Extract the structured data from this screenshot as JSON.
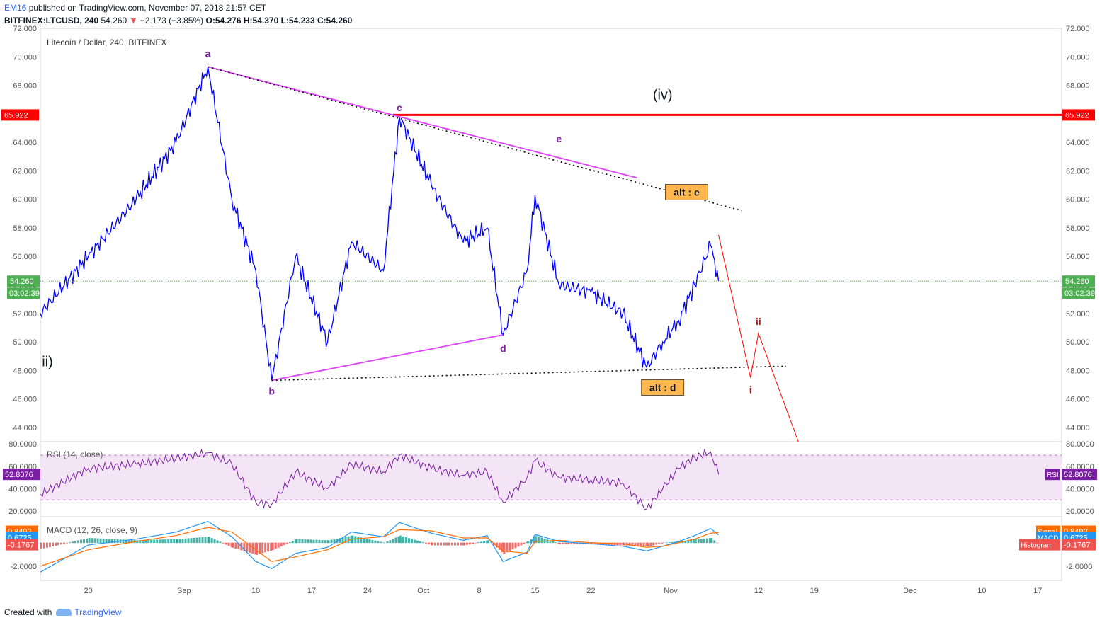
{
  "header": {
    "author": "EM16",
    "published_text": "published on TradingView.com, November 07, 2018 21:57 CET",
    "symbol": "BITFINEX:LTCUSD, 240",
    "last": "54.260",
    "change": "−2.173 (−3.85%)",
    "ohlc": {
      "o": "O:54.276",
      "h": "H:54.370",
      "l": "L:54.233",
      "c": "C:54.260"
    }
  },
  "footer": {
    "created_with": "Created with",
    "brand": "TradingView"
  },
  "colors": {
    "price": "#0000ff",
    "wave": "#e040fb",
    "resistance": "#ff0000",
    "projection": "#ff0000",
    "rsi": "#7b1fa2",
    "macd": "#2196f3",
    "signal": "#ff6d00",
    "hist_pos": "#26a69a",
    "hist_neg": "#ef5350",
    "last_price": "#4caf50"
  },
  "chart_data": [
    {
      "type": "line",
      "title": "Litecoin / Dollar, 240, BITFINEX",
      "y_ticks": [
        "72.000",
        "70.000",
        "68.000",
        "66.000",
        "64.000",
        "62.000",
        "60.000",
        "58.000",
        "56.000",
        "54.000",
        "52.000",
        "50.000",
        "48.000",
        "46.000",
        "44.000"
      ],
      "ylim": [
        43,
        72
      ],
      "x_ticks": [
        "20",
        "Sep",
        "10",
        "17",
        "24",
        "Oct",
        "8",
        "15",
        "22",
        "Nov",
        "12",
        "19",
        "Dec",
        "10",
        "17"
      ],
      "x": [
        "2018-08-14",
        "2018-08-20",
        "2018-08-26",
        "2018-08-31",
        "2018-09-04",
        "2018-09-07",
        "2018-09-10",
        "2018-09-12",
        "2018-09-15",
        "2018-09-19",
        "2018-09-22",
        "2018-09-26",
        "2018-09-28",
        "2018-10-02",
        "2018-10-06",
        "2018-10-09",
        "2018-10-11",
        "2018-10-14",
        "2018-10-15",
        "2018-10-18",
        "2018-10-22",
        "2018-10-26",
        "2018-10-29",
        "2018-10-31",
        "2018-11-02",
        "2018-11-04",
        "2018-11-06",
        "2018-11-07"
      ],
      "series": [
        {
          "name": "LTCUSD",
          "values": [
            52,
            56,
            60,
            64,
            69.3,
            60,
            55,
            47.3,
            56,
            50,
            57,
            55,
            65.8,
            61,
            57,
            58,
            50.5,
            55,
            60.3,
            54,
            53.5,
            52,
            48.2,
            50,
            51.5,
            54,
            56.8,
            54.26
          ]
        }
      ],
      "resistance": {
        "value": 65.922,
        "label": "65.922"
      },
      "last_price": {
        "value": 54.26,
        "label": "54.260",
        "countdown": "03:02:39"
      },
      "wave_labels": [
        {
          "text": "a",
          "x": "2018-09-04",
          "y": 69.3
        },
        {
          "text": "b",
          "x": "2018-09-12",
          "y": 47.3
        },
        {
          "text": "c",
          "x": "2018-09-28",
          "y": 65.8
        },
        {
          "text": "d",
          "x": "2018-10-11",
          "y": 50.5
        },
        {
          "text": "e",
          "x": "2018-10-18",
          "y": 63.5
        },
        {
          "text": "(iv)",
          "x": "2018-10-31",
          "y": 67
        },
        {
          "text": "ii)",
          "x": "2018-08-14",
          "y": 48.3
        },
        {
          "text": "i",
          "x": "2018-11-11",
          "y": 47.5
        },
        {
          "text": "ii",
          "x": "2018-11-12",
          "y": 50.6
        }
      ],
      "alt_labels": [
        {
          "text": "alt : e",
          "x": "2018-11-03",
          "y": 60.5
        },
        {
          "text": "alt : d",
          "x": "2018-10-31",
          "y": 46.8
        }
      ],
      "projection": [
        {
          "x": "2018-11-07",
          "y": 57.5
        },
        {
          "x": "2018-11-11",
          "y": 47.5
        },
        {
          "x": "2018-11-12",
          "y": 50.6
        },
        {
          "x": "2018-11-17",
          "y": 43
        }
      ]
    },
    {
      "type": "line",
      "title": "RSI (14, close)",
      "y_ticks": [
        "80.0000",
        "60.0000",
        "40.0000",
        "20.0000"
      ],
      "ylim": [
        15,
        82
      ],
      "bands": [
        30,
        70
      ],
      "series": [
        {
          "name": "RSI",
          "values": [
            35,
            58,
            62,
            67,
            72,
            62,
            28,
            26,
            55,
            40,
            62,
            55,
            70,
            58,
            52,
            55,
            28,
            50,
            65,
            50,
            48,
            45,
            22,
            40,
            58,
            68,
            73,
            52.8
          ]
        }
      ],
      "current_label": "52.8076",
      "side_label": "RSI"
    },
    {
      "type": "line",
      "title": "MACD (12, 26, close, 9)",
      "y_ticks": [
        "-2.0000"
      ],
      "ylim": [
        -3.2,
        2.2
      ],
      "series": [
        {
          "name": "MACD",
          "values": [
            -2.5,
            -0.2,
            0.3,
            0.9,
            1.8,
            0.5,
            -1.6,
            -2.2,
            -0.9,
            -0.4,
            0.9,
            0.5,
            1.7,
            0.8,
            0.2,
            0.6,
            -1.6,
            -0.8,
            0.7,
            0.1,
            -0.1,
            -0.3,
            -0.7,
            -0.3,
            0.1,
            0.6,
            1.2,
            0.67
          ]
        },
        {
          "name": "Signal",
          "values": [
            -2.0,
            -0.6,
            0.1,
            0.6,
            1.3,
            0.9,
            -0.6,
            -1.6,
            -1.2,
            -0.6,
            0.3,
            0.5,
            1.1,
            1.0,
            0.4,
            0.4,
            -0.7,
            -0.9,
            0.1,
            0.2,
            0.0,
            -0.1,
            -0.4,
            -0.3,
            0.0,
            0.3,
            0.8,
            0.85
          ]
        }
      ],
      "labels": {
        "signal": "0.8492",
        "macd": "0.6725",
        "histogram": "-0.1767"
      },
      "side_labels": {
        "signal": "Signal",
        "macd": "MACD",
        "histogram": "Histogram"
      }
    }
  ]
}
